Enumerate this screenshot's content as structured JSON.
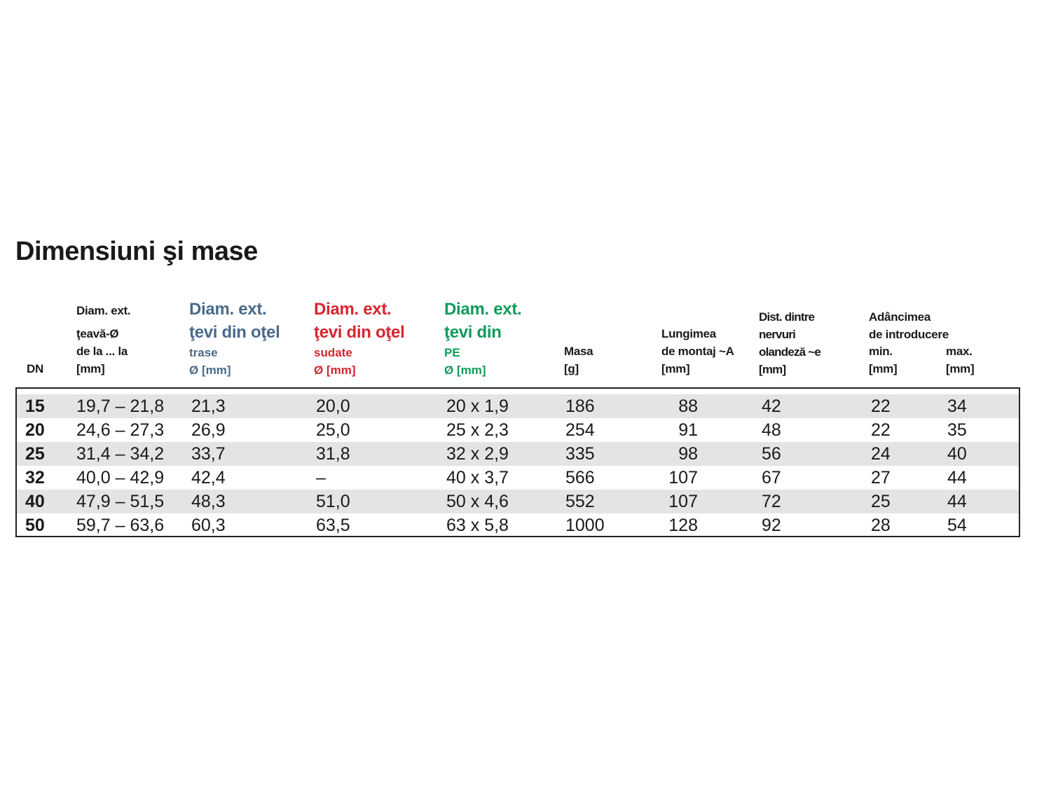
{
  "title": "Dimensiuni şi mase",
  "headers": {
    "dn": "DN",
    "pipe": {
      "line1": "Diam. ext.",
      "line2": "ţeavă-Ø",
      "line3": "de la ... la",
      "unit": "[mm]"
    },
    "steel_drawn": {
      "line1": "Diam. ext.",
      "line2": "ţevi din oţel",
      "line3": "trase",
      "unit": "Ø [mm]"
    },
    "steel_welded": {
      "line1": "Diam. ext.",
      "line2": "ţevi din oţel",
      "line3": "sudate",
      "unit": "Ø [mm]"
    },
    "pe": {
      "line1": "Diam. ext.",
      "line2": "ţevi din",
      "line3": "PE",
      "unit": "Ø [mm]"
    },
    "mass": {
      "line1": "Masa",
      "unit": "[g]"
    },
    "length": {
      "line1": "Lungimea",
      "line2": "de montaj ~A",
      "unit": "[mm]"
    },
    "dist": {
      "line1": "Dist. dintre",
      "line2": "nervuri",
      "line3": "olandeză ~e",
      "unit": "[mm]"
    },
    "depth": {
      "line1": "Adâncimea",
      "line2": "de introducere",
      "min": "min.",
      "max": "max.",
      "min_unit": "[mm]",
      "max_unit": "[mm]"
    }
  },
  "colors": {
    "blue": "#4a6a8a",
    "red": "#d7252f",
    "green": "#129a5a",
    "row_shade": "#e3e4e6"
  },
  "rows": [
    [
      "15",
      "19,7 –  21,8",
      "21,3",
      "20,0",
      "20 x 1,9",
      "186",
      "88",
      "42",
      "22",
      "34"
    ],
    [
      "20",
      "24,6 – 27,3",
      "26,9",
      "25,0",
      "25 x 2,3",
      "254",
      "91",
      "48",
      "22",
      "35"
    ],
    [
      "25",
      "31,4 – 34,2",
      "33,7",
      "31,8",
      "32 x 2,9",
      "335",
      "98",
      "56",
      "24",
      "40"
    ],
    [
      "32",
      "40,0 – 42,9",
      "42,4",
      "–",
      "40 x 3,7",
      "566",
      "107",
      "67",
      "27",
      "44"
    ],
    [
      "40",
      "47,9 – 51,5",
      "48,3",
      "51,0",
      "50 x 4,6",
      "552",
      "107",
      "72",
      "25",
      "44"
    ],
    [
      "50",
      "59,7 – 63,6",
      "60,3",
      "63,5",
      "63 x 5,8",
      "1000",
      "128",
      "92",
      "28",
      "54"
    ]
  ]
}
